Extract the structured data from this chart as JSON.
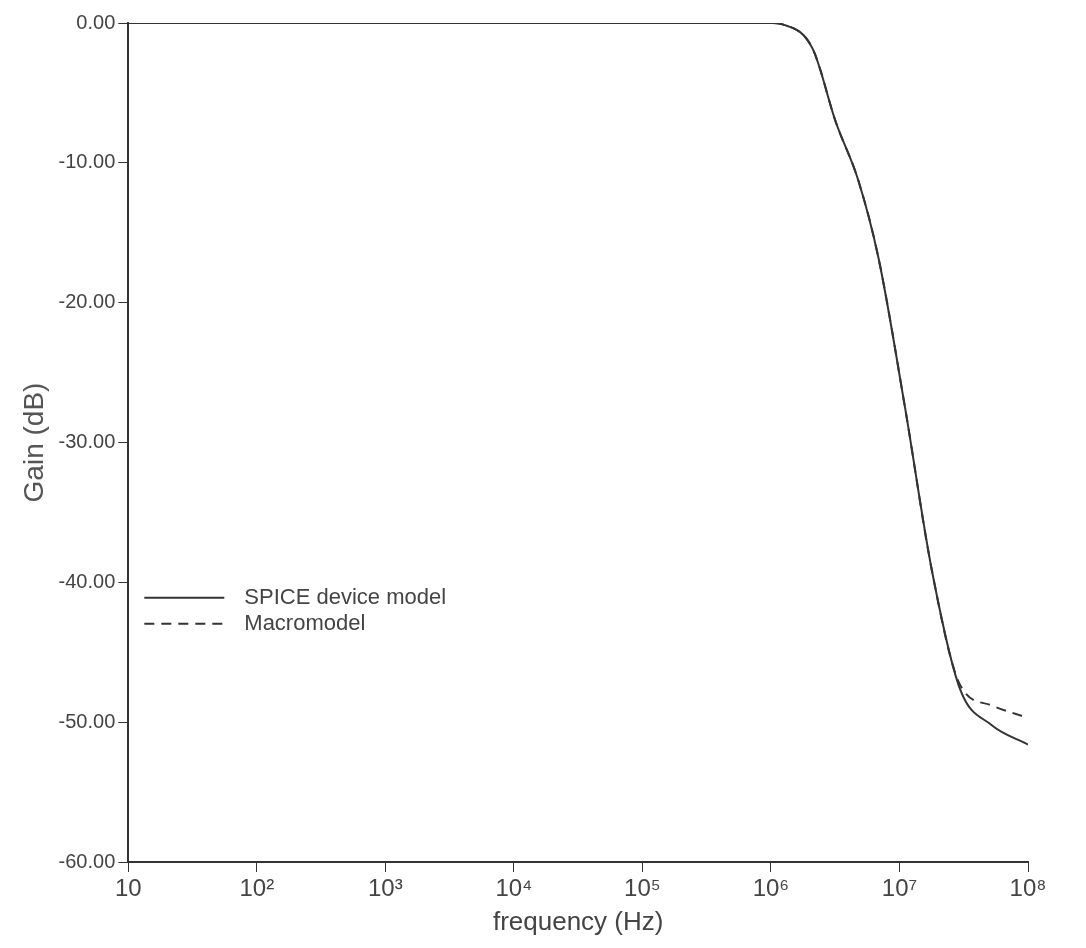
{
  "chart_data": {
    "type": "line",
    "xlabel": "frequency (Hz)",
    "ylabel": "Gain (dB)",
    "log": "x",
    "xlim": [
      10,
      100000000
    ],
    "xticks": [
      10,
      {
        "value": 100,
        "label": "10²"
      },
      {
        "value": 1000,
        "label": "10³"
      },
      {
        "value": 10000,
        "label": "10⁴"
      },
      {
        "value": 100000,
        "label": "10⁵"
      },
      {
        "value": 1000000,
        "label": "10⁶"
      },
      {
        "value": 10000000,
        "label": "10⁷"
      },
      {
        "value": 100000000,
        "label": "10⁸"
      }
    ],
    "ylim": [
      -60,
      0
    ],
    "yticks": [
      {
        "value": 0,
        "label": "0.00"
      },
      {
        "value": -10,
        "label": "-10.00"
      },
      {
        "value": -20,
        "label": "-20.00"
      },
      {
        "value": -30,
        "label": "-30.00"
      },
      {
        "value": -40,
        "label": "-40.00"
      },
      {
        "value": -50,
        "label": "-50.00"
      },
      {
        "value": -60,
        "label": "-60.00"
      }
    ],
    "legend": "left",
    "series": [
      {
        "name": "SPICE device model",
        "color": "#333333",
        "line_style": "solid",
        "x": [
          10,
          100000,
          1000000,
          1230000,
          2100000,
          3200000,
          4800000,
          6900000,
          11000000,
          18000000,
          29500000,
          52000000,
          100000000
        ],
        "values": [
          0,
          0,
          0,
          -0.1,
          -1.8,
          -7.1,
          -11.3,
          -16.9,
          -27.4,
          -39.3,
          -47.6,
          -50.2,
          -51.6
        ]
      },
      {
        "name": "Macromodel",
        "color": "#333333",
        "line_style": "dashed",
        "x": [
          10,
          100000,
          1000000,
          1230000,
          2100000,
          3200000,
          4800000,
          6900000,
          11000000,
          18000000,
          29500000,
          52000000,
          100000000
        ],
        "values": [
          0,
          0,
          0,
          -0.1,
          -1.8,
          -7.1,
          -11.3,
          -16.9,
          -27.4,
          -39.3,
          -47.3,
          -48.8,
          -49.7
        ]
      }
    ]
  }
}
